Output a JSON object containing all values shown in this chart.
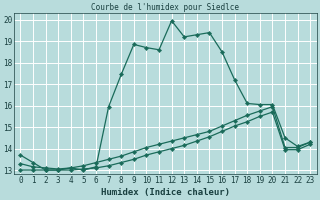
{
  "title": "Courbe de l'humidex pour Siedlce",
  "xlabel": "Humidex (Indice chaleur)",
  "background_color": "#b8dcdc",
  "grid_color": "#ffffff",
  "line_color": "#1a6b5a",
  "xlim": [
    -0.5,
    23.5
  ],
  "ylim": [
    12.8,
    20.3
  ],
  "yticks": [
    13,
    14,
    15,
    16,
    17,
    18,
    19,
    20
  ],
  "xticks": [
    0,
    1,
    2,
    3,
    4,
    5,
    6,
    7,
    8,
    9,
    10,
    11,
    12,
    13,
    14,
    15,
    16,
    17,
    18,
    19,
    20,
    21,
    22,
    23
  ],
  "series1_x": [
    0,
    1,
    2,
    3,
    4,
    5,
    6,
    7,
    8,
    9,
    10,
    11,
    12,
    13,
    14,
    15,
    16,
    17,
    18,
    19,
    20,
    21,
    22,
    23
  ],
  "series1_y": [
    13.7,
    13.35,
    13.0,
    13.0,
    13.1,
    13.0,
    13.15,
    15.95,
    17.45,
    18.85,
    18.7,
    18.6,
    19.95,
    19.2,
    19.3,
    19.4,
    18.5,
    17.2,
    16.1,
    16.05,
    16.05,
    14.5,
    14.1,
    14.3
  ],
  "series2_x": [
    0,
    1,
    2,
    3,
    4,
    5,
    6,
    7,
    8,
    9,
    10,
    11,
    12,
    13,
    14,
    15,
    16,
    17,
    18,
    19,
    20,
    21,
    22,
    23
  ],
  "series2_y": [
    13.3,
    13.15,
    13.1,
    13.05,
    13.1,
    13.2,
    13.35,
    13.5,
    13.65,
    13.85,
    14.05,
    14.2,
    14.35,
    14.5,
    14.65,
    14.8,
    15.05,
    15.3,
    15.55,
    15.75,
    15.95,
    14.05,
    14.05,
    14.3
  ],
  "series3_x": [
    0,
    1,
    2,
    3,
    4,
    5,
    6,
    7,
    8,
    9,
    10,
    11,
    12,
    13,
    14,
    15,
    16,
    17,
    18,
    19,
    20,
    21,
    22,
    23
  ],
  "series3_y": [
    13.0,
    13.0,
    13.0,
    13.0,
    13.0,
    13.05,
    13.1,
    13.2,
    13.35,
    13.5,
    13.7,
    13.85,
    14.0,
    14.15,
    14.35,
    14.55,
    14.8,
    15.05,
    15.25,
    15.5,
    15.7,
    13.95,
    13.95,
    14.2
  ]
}
